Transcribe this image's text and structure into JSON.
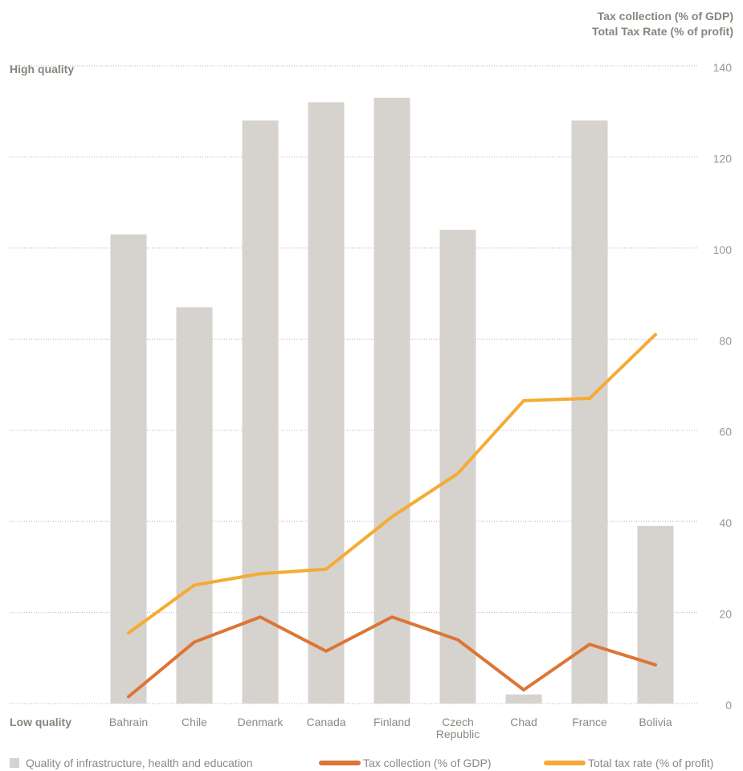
{
  "chart_data": {
    "type": "bar",
    "right_axis_titles": [
      "Tax collection (% of GDP)",
      "Total Tax Rate (% of profit)"
    ],
    "top_label": "High quality",
    "bottom_label": "Low quality",
    "ylim": [
      0,
      140
    ],
    "yticks": [
      0,
      20,
      40,
      60,
      80,
      100,
      120,
      140
    ],
    "grid": true,
    "categories": [
      [
        "Bahrain"
      ],
      [
        "Chile"
      ],
      [
        "Denmark"
      ],
      [
        "Canada"
      ],
      [
        "Finland"
      ],
      [
        "Czech",
        "Republic"
      ],
      [
        "Chad"
      ],
      [
        "France"
      ],
      [
        "Bolivia"
      ]
    ],
    "series": [
      {
        "name": "Quality of infrastructure, health and education",
        "type": "bar",
        "color": "#d6d2ce",
        "values": [
          103,
          87,
          128,
          132,
          133,
          104,
          2,
          128,
          39
        ]
      },
      {
        "name": "Tax collection (% of GDP)",
        "type": "line",
        "color": "#dd7535",
        "values": [
          1.5,
          13.5,
          19,
          11.5,
          19,
          14,
          3,
          13,
          8.5
        ]
      },
      {
        "name": "Total tax rate (% of profit)",
        "type": "line",
        "color": "#f5ab33",
        "values": [
          15.5,
          26,
          28.5,
          29.5,
          41,
          50.5,
          66.5,
          67,
          81
        ]
      }
    ],
    "legend_position": "bottom"
  }
}
